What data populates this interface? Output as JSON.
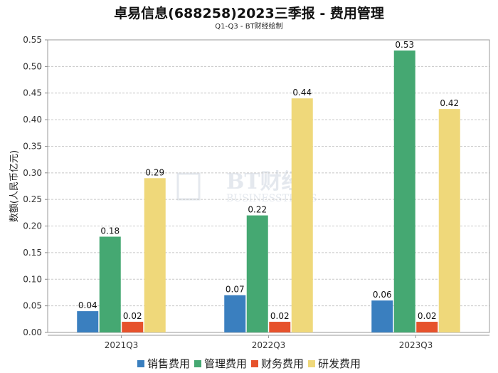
{
  "chart_data": {
    "type": "bar",
    "title": "卓易信息(688258)2023三季报 - 费用管理",
    "subtitle": "Q1-Q3 - BT财经绘制",
    "xlabel": "",
    "ylabel": "数额(人民币亿元)",
    "ylim": [
      0,
      0.55
    ],
    "yticks": [
      "0.00",
      "0.05",
      "0.10",
      "0.15",
      "0.20",
      "0.25",
      "0.30",
      "0.35",
      "0.40",
      "0.45",
      "0.50",
      "0.55"
    ],
    "grid": true,
    "legend_position": "bottom",
    "categories": [
      "2021Q3",
      "2022Q3",
      "2023Q3"
    ],
    "series": [
      {
        "name": "销售费用",
        "color": "#3a7fbf",
        "values": [
          0.04,
          0.07,
          0.06
        ]
      },
      {
        "name": "管理费用",
        "color": "#45a872",
        "values": [
          0.18,
          0.22,
          0.53
        ]
      },
      {
        "name": "财务费用",
        "color": "#e6522c",
        "values": [
          0.02,
          0.02,
          0.02
        ]
      },
      {
        "name": "研发费用",
        "color": "#efd87a",
        "values": [
          0.29,
          0.44,
          0.42
        ]
      }
    ]
  },
  "watermark": {
    "text": "BT财经",
    "sub": "BUSINESSTIMES"
  }
}
